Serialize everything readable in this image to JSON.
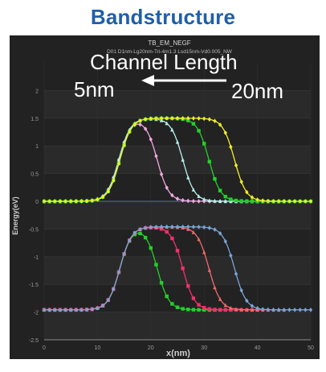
{
  "page": {
    "title": "Bandstructure"
  },
  "colors": {
    "pink": "#f2a8e0",
    "cyan": "#b6f0ea",
    "green": "#22d12a",
    "yellow": "#f0ee28",
    "red": "#f0306c",
    "salmon": "#f06a6a",
    "steel": "#7aa4d4",
    "zero_line": "#5a6fb0"
  },
  "chart_data": {
    "type": "line",
    "title": "TB_EM_NEGF",
    "subtitle": "D01 D1nm-Lg20nm-Tri-4m1.3 Lsd15nm-Vd0.005_NW",
    "xlabel": "x(nm)",
    "ylabel": "Energy(eV)",
    "xlim": [
      0,
      50
    ],
    "ylim": [
      -2.5,
      2.5
    ],
    "xticks": [
      0,
      10,
      20,
      30,
      40,
      50
    ],
    "yticks": [
      2,
      1.5,
      1,
      0.5,
      0,
      -0.5,
      -1,
      -1.5,
      -2,
      -2.5
    ],
    "grid": true,
    "annotations": {
      "channel_length": "Channel Length",
      "short": "5nm",
      "long": "20nm"
    },
    "series": [
      {
        "band": "conduction",
        "color": "pink",
        "marker": "diamond",
        "base": 0.0,
        "peak": 1.5,
        "rise_center": 14.0,
        "fall_center": 21.2,
        "width": 1.1
      },
      {
        "band": "conduction",
        "color": "cyan",
        "marker": "triangle",
        "base": 0.0,
        "peak": 1.5,
        "rise_center": 14.0,
        "fall_center": 26.0,
        "width": 1.1
      },
      {
        "band": "conduction",
        "color": "green",
        "marker": "square",
        "base": 0.0,
        "peak": 1.5,
        "rise_center": 14.2,
        "fall_center": 30.9,
        "width": 1.1
      },
      {
        "band": "conduction",
        "color": "yellow",
        "marker": "diamond",
        "base": 0.0,
        "peak": 1.5,
        "rise_center": 14.2,
        "fall_center": 35.7,
        "width": 1.1
      },
      {
        "band": "valence",
        "color": "green",
        "marker": "square",
        "base": -1.96,
        "peak": -0.46,
        "rise_center": 14.2,
        "fall_center": 21.2,
        "width": 1.1
      },
      {
        "band": "valence",
        "color": "red",
        "marker": "square",
        "base": -1.96,
        "peak": -0.46,
        "rise_center": 14.2,
        "fall_center": 26.0,
        "width": 1.1
      },
      {
        "band": "valence",
        "color": "salmon",
        "marker": "triangle",
        "base": -1.96,
        "peak": -0.46,
        "rise_center": 14.2,
        "fall_center": 30.9,
        "width": 1.1
      },
      {
        "band": "valence",
        "color": "steel",
        "marker": "diamond",
        "base": -1.96,
        "peak": -0.46,
        "rise_center": 14.2,
        "fall_center": 35.7,
        "width": 1.1
      }
    ],
    "x_range_per_series": [
      [
        0,
        45
      ],
      [
        0,
        45
      ],
      [
        0,
        50
      ],
      [
        0,
        50
      ],
      [
        0,
        35
      ],
      [
        0,
        40
      ],
      [
        0,
        45
      ],
      [
        0,
        50
      ]
    ]
  }
}
